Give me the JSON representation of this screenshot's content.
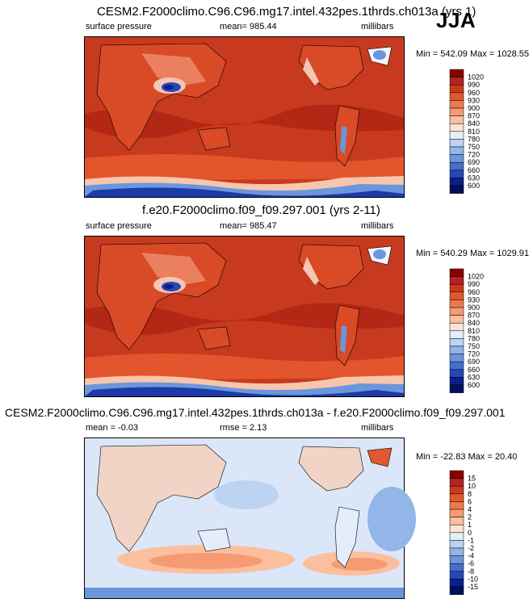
{
  "season": "JJA",
  "panels": [
    {
      "title": "CESM2.F2000climo.C96.C96.mg17.intel.432pes.1thrds.ch013a (yrs 1)",
      "left": "surface pressure",
      "center": "mean= 985.44",
      "right": "millibars",
      "minmax": "Min = 542.09 Max = 1028.55"
    },
    {
      "title": "f.e20.F2000climo.f09_f09.297.001 (yrs 2-11)",
      "left": "surface pressure",
      "center": "mean= 985.47",
      "right": "millibars",
      "minmax": "Min = 540.29 Max = 1029.91"
    },
    {
      "title": "CESM2.F2000climo.C96.C96.mg17.intel.432pes.1thrds.ch013a - f.e20.F2000climo.f09_f09.297.001",
      "left": "mean =  -0.03",
      "center": "rmse =   2.13",
      "right": "millibars",
      "minmax": "Min = -22.83 Max =  20.40"
    }
  ],
  "colorbars": {
    "absolute": {
      "labels": [
        "1020",
        "990",
        "960",
        "930",
        "900",
        "870",
        "840",
        "810",
        "780",
        "750",
        "720",
        "690",
        "660",
        "630",
        "600"
      ],
      "colors": [
        "#8b0000",
        "#b22222",
        "#cd3a1b",
        "#e0582c",
        "#ec7a4d",
        "#f59a73",
        "#fbbf9e",
        "#fde3d4",
        "#e4eefb",
        "#bcd4f2",
        "#92b6e8",
        "#6b96dc",
        "#456fcc",
        "#2448b4",
        "#0b1f8c",
        "#00105a"
      ]
    },
    "difference": {
      "labels": [
        "15",
        "10",
        "8",
        "6",
        "4",
        "2",
        "1",
        "0",
        "-1",
        "-2",
        "-4",
        "-6",
        "-8",
        "-10",
        "-15"
      ],
      "colors": [
        "#8b0000",
        "#b22222",
        "#cd3a1b",
        "#e0582c",
        "#ec7a4d",
        "#f59a73",
        "#fbbf9e",
        "#fde3d4",
        "#e4eefb",
        "#bcd4f2",
        "#92b6e8",
        "#6b96dc",
        "#456fcc",
        "#2448b4",
        "#0b1f8c",
        "#00105a"
      ]
    }
  },
  "colors": {
    "ocean_high": "#c73a1f",
    "ocean_band": "#ad2411",
    "southern_band": "#e3552c",
    "antarctic_blue": "#2448b4",
    "diff_background": "#dbe7f8"
  }
}
